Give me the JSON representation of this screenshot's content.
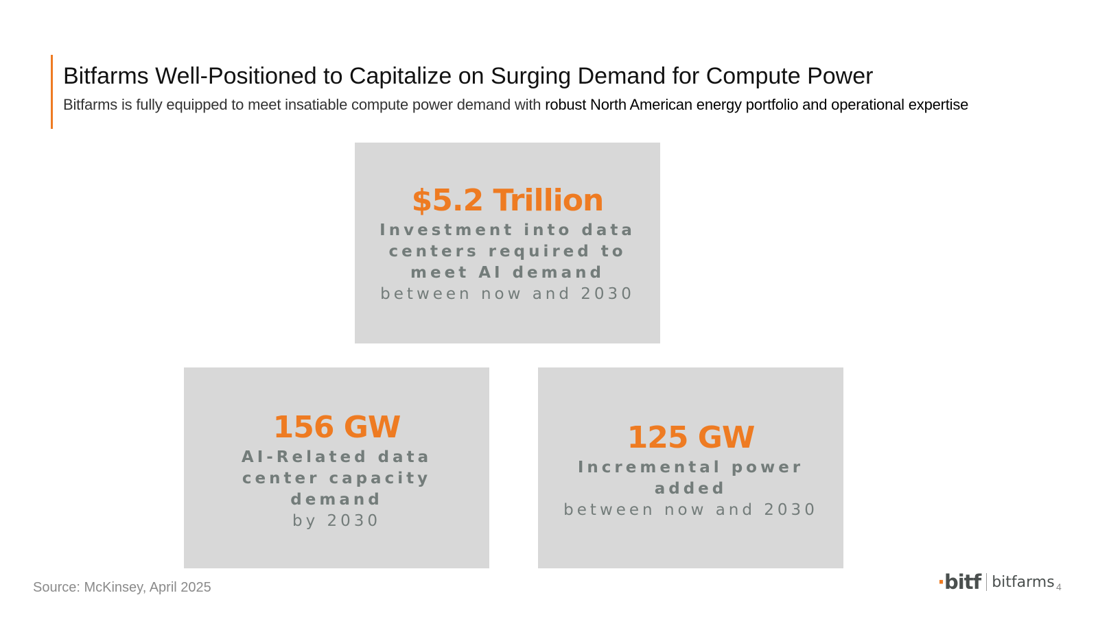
{
  "header": {
    "title": "Bitfarms Well-Positioned to Capitalize on Surging Demand for Compute Power",
    "subtitle_plain": "Bitfarms is fully equipped to meet insatiable compute power demand with ",
    "subtitle_emphasis": "robust North American energy portfolio and operational expertise"
  },
  "cards": [
    {
      "metric": "$5.2 Trillion",
      "description": "Investment into data centers required to meet AI demand",
      "sub": "between now and 2030"
    },
    {
      "metric": "156 GW",
      "description": "AI-Related data center capacity demand",
      "sub": "by 2030"
    },
    {
      "metric": "125 GW",
      "description": "Incremental power added",
      "sub": "between now and 2030"
    }
  ],
  "footer": {
    "source": "Source: McKinsey, April 2025",
    "logo_mark": "bitf",
    "logo_word": "bitfarms",
    "page_number": "4"
  },
  "colors": {
    "accent": "#ee7b22",
    "card_bg": "#d8d8d8",
    "card_text": "#737c7a"
  }
}
